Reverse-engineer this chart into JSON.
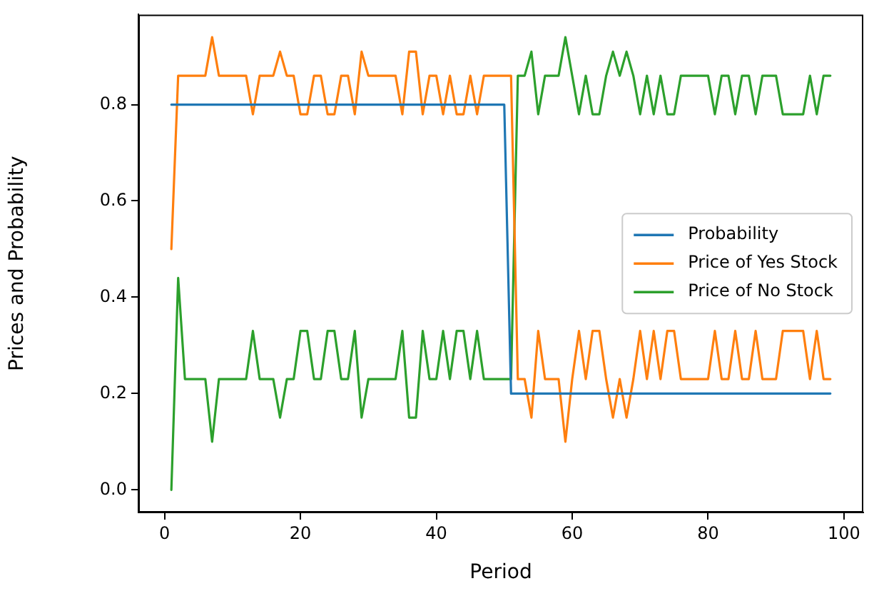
{
  "chart_data": {
    "type": "line",
    "xlabel": "Period",
    "ylabel": "Prices and Probability",
    "x": [
      1,
      2,
      3,
      4,
      5,
      6,
      7,
      8,
      9,
      10,
      11,
      12,
      13,
      14,
      15,
      16,
      17,
      18,
      19,
      20,
      21,
      22,
      23,
      24,
      25,
      26,
      27,
      28,
      29,
      30,
      31,
      32,
      33,
      34,
      35,
      36,
      37,
      38,
      39,
      40,
      41,
      42,
      43,
      44,
      45,
      46,
      47,
      48,
      49,
      50,
      51,
      52,
      53,
      54,
      55,
      56,
      57,
      58,
      59,
      60,
      61,
      62,
      63,
      64,
      65,
      66,
      67,
      68,
      69,
      70,
      71,
      72,
      73,
      74,
      75,
      76,
      77,
      78,
      79,
      80,
      81,
      82,
      83,
      84,
      85,
      86,
      87,
      88,
      89,
      90,
      91,
      92,
      93,
      94,
      95,
      96,
      97,
      98
    ],
    "series": [
      {
        "name": "Probability",
        "color": "#1f77b4",
        "values": [
          0.8,
          0.8,
          0.8,
          0.8,
          0.8,
          0.8,
          0.8,
          0.8,
          0.8,
          0.8,
          0.8,
          0.8,
          0.8,
          0.8,
          0.8,
          0.8,
          0.8,
          0.8,
          0.8,
          0.8,
          0.8,
          0.8,
          0.8,
          0.8,
          0.8,
          0.8,
          0.8,
          0.8,
          0.8,
          0.8,
          0.8,
          0.8,
          0.8,
          0.8,
          0.8,
          0.8,
          0.8,
          0.8,
          0.8,
          0.8,
          0.8,
          0.8,
          0.8,
          0.8,
          0.8,
          0.8,
          0.8,
          0.8,
          0.8,
          0.8,
          0.2,
          0.2,
          0.2,
          0.2,
          0.2,
          0.2,
          0.2,
          0.2,
          0.2,
          0.2,
          0.2,
          0.2,
          0.2,
          0.2,
          0.2,
          0.2,
          0.2,
          0.2,
          0.2,
          0.2,
          0.2,
          0.2,
          0.2,
          0.2,
          0.2,
          0.2,
          0.2,
          0.2,
          0.2,
          0.2,
          0.2,
          0.2,
          0.2,
          0.2,
          0.2,
          0.2,
          0.2,
          0.2,
          0.2,
          0.2,
          0.2,
          0.2,
          0.2,
          0.2,
          0.2,
          0.2,
          0.2,
          0.2
        ]
      },
      {
        "name": "Price of Yes Stock",
        "color": "#ff7f0e",
        "values": [
          0.5,
          0.86,
          0.86,
          0.86,
          0.86,
          0.86,
          0.94,
          0.86,
          0.86,
          0.86,
          0.86,
          0.86,
          0.78,
          0.86,
          0.86,
          0.86,
          0.91,
          0.86,
          0.86,
          0.78,
          0.78,
          0.86,
          0.86,
          0.78,
          0.78,
          0.86,
          0.86,
          0.78,
          0.91,
          0.86,
          0.86,
          0.86,
          0.86,
          0.86,
          0.78,
          0.91,
          0.91,
          0.78,
          0.86,
          0.86,
          0.78,
          0.86,
          0.78,
          0.78,
          0.86,
          0.78,
          0.86,
          0.86,
          0.86,
          0.86,
          0.86,
          0.23,
          0.23,
          0.15,
          0.33,
          0.23,
          0.23,
          0.23,
          0.1,
          0.23,
          0.33,
          0.23,
          0.33,
          0.33,
          0.23,
          0.15,
          0.23,
          0.15,
          0.23,
          0.33,
          0.23,
          0.33,
          0.23,
          0.33,
          0.33,
          0.23,
          0.23,
          0.23,
          0.23,
          0.23,
          0.33,
          0.23,
          0.23,
          0.33,
          0.23,
          0.23,
          0.33,
          0.23,
          0.23,
          0.23,
          0.33,
          0.33,
          0.33,
          0.33,
          0.23,
          0.33,
          0.23,
          0.23
        ]
      },
      {
        "name": "Price of No Stock",
        "color": "#2ca02c",
        "values": [
          0.0,
          0.44,
          0.23,
          0.23,
          0.23,
          0.23,
          0.1,
          0.23,
          0.23,
          0.23,
          0.23,
          0.23,
          0.33,
          0.23,
          0.23,
          0.23,
          0.15,
          0.23,
          0.23,
          0.33,
          0.33,
          0.23,
          0.23,
          0.33,
          0.33,
          0.23,
          0.23,
          0.33,
          0.15,
          0.23,
          0.23,
          0.23,
          0.23,
          0.23,
          0.33,
          0.15,
          0.15,
          0.33,
          0.23,
          0.23,
          0.33,
          0.23,
          0.33,
          0.33,
          0.23,
          0.33,
          0.23,
          0.23,
          0.23,
          0.23,
          0.23,
          0.86,
          0.86,
          0.91,
          0.78,
          0.86,
          0.86,
          0.86,
          0.94,
          0.86,
          0.78,
          0.86,
          0.78,
          0.78,
          0.86,
          0.91,
          0.86,
          0.91,
          0.86,
          0.78,
          0.86,
          0.78,
          0.86,
          0.78,
          0.78,
          0.86,
          0.86,
          0.86,
          0.86,
          0.86,
          0.78,
          0.86,
          0.86,
          0.78,
          0.86,
          0.86,
          0.78,
          0.86,
          0.86,
          0.86,
          0.78,
          0.78,
          0.78,
          0.78,
          0.86,
          0.78,
          0.86,
          0.86
        ]
      }
    ],
    "xlim": [
      -3.85,
      102.85
    ],
    "xticks": [
      0,
      20,
      40,
      60,
      80,
      100
    ],
    "ylim": [
      -0.047,
      0.987
    ],
    "yticks": [
      {
        "value": 0,
        "label": "0.0"
      },
      {
        "value": 0.2,
        "label": "0.2"
      },
      {
        "value": 0.4,
        "label": "0.4"
      },
      {
        "value": 0.6,
        "label": "0.6"
      },
      {
        "value": 0.8,
        "label": "0.8"
      }
    ],
    "legend": "right",
    "marker": "none",
    "line_style": "solid",
    "grid": false
  }
}
